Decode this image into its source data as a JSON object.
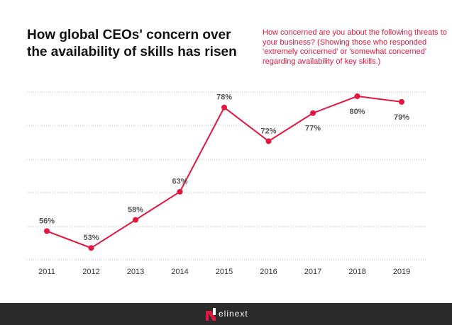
{
  "chart_data": {
    "type": "line",
    "title": "How global CEOs' concern over the availability of skills has risen",
    "subtitle": "How concerned are you about the following threats to your business? (Showing those who responded 'extremely concerned' or 'somewhat concerned' regarding availability of key skills.)",
    "categories": [
      "2011",
      "2012",
      "2013",
      "2014",
      "2015",
      "2016",
      "2017",
      "2018",
      "2019"
    ],
    "values": [
      56,
      53,
      58,
      63,
      78,
      72,
      77,
      80,
      79
    ],
    "value_labels": [
      "56%",
      "53%",
      "58%",
      "63%",
      "78%",
      "72%",
      "77%",
      "80%",
      "79%"
    ],
    "color": "#e3173e",
    "ylim": [
      50,
      81
    ],
    "grid": true
  },
  "footer": {
    "brand": "elinext"
  }
}
